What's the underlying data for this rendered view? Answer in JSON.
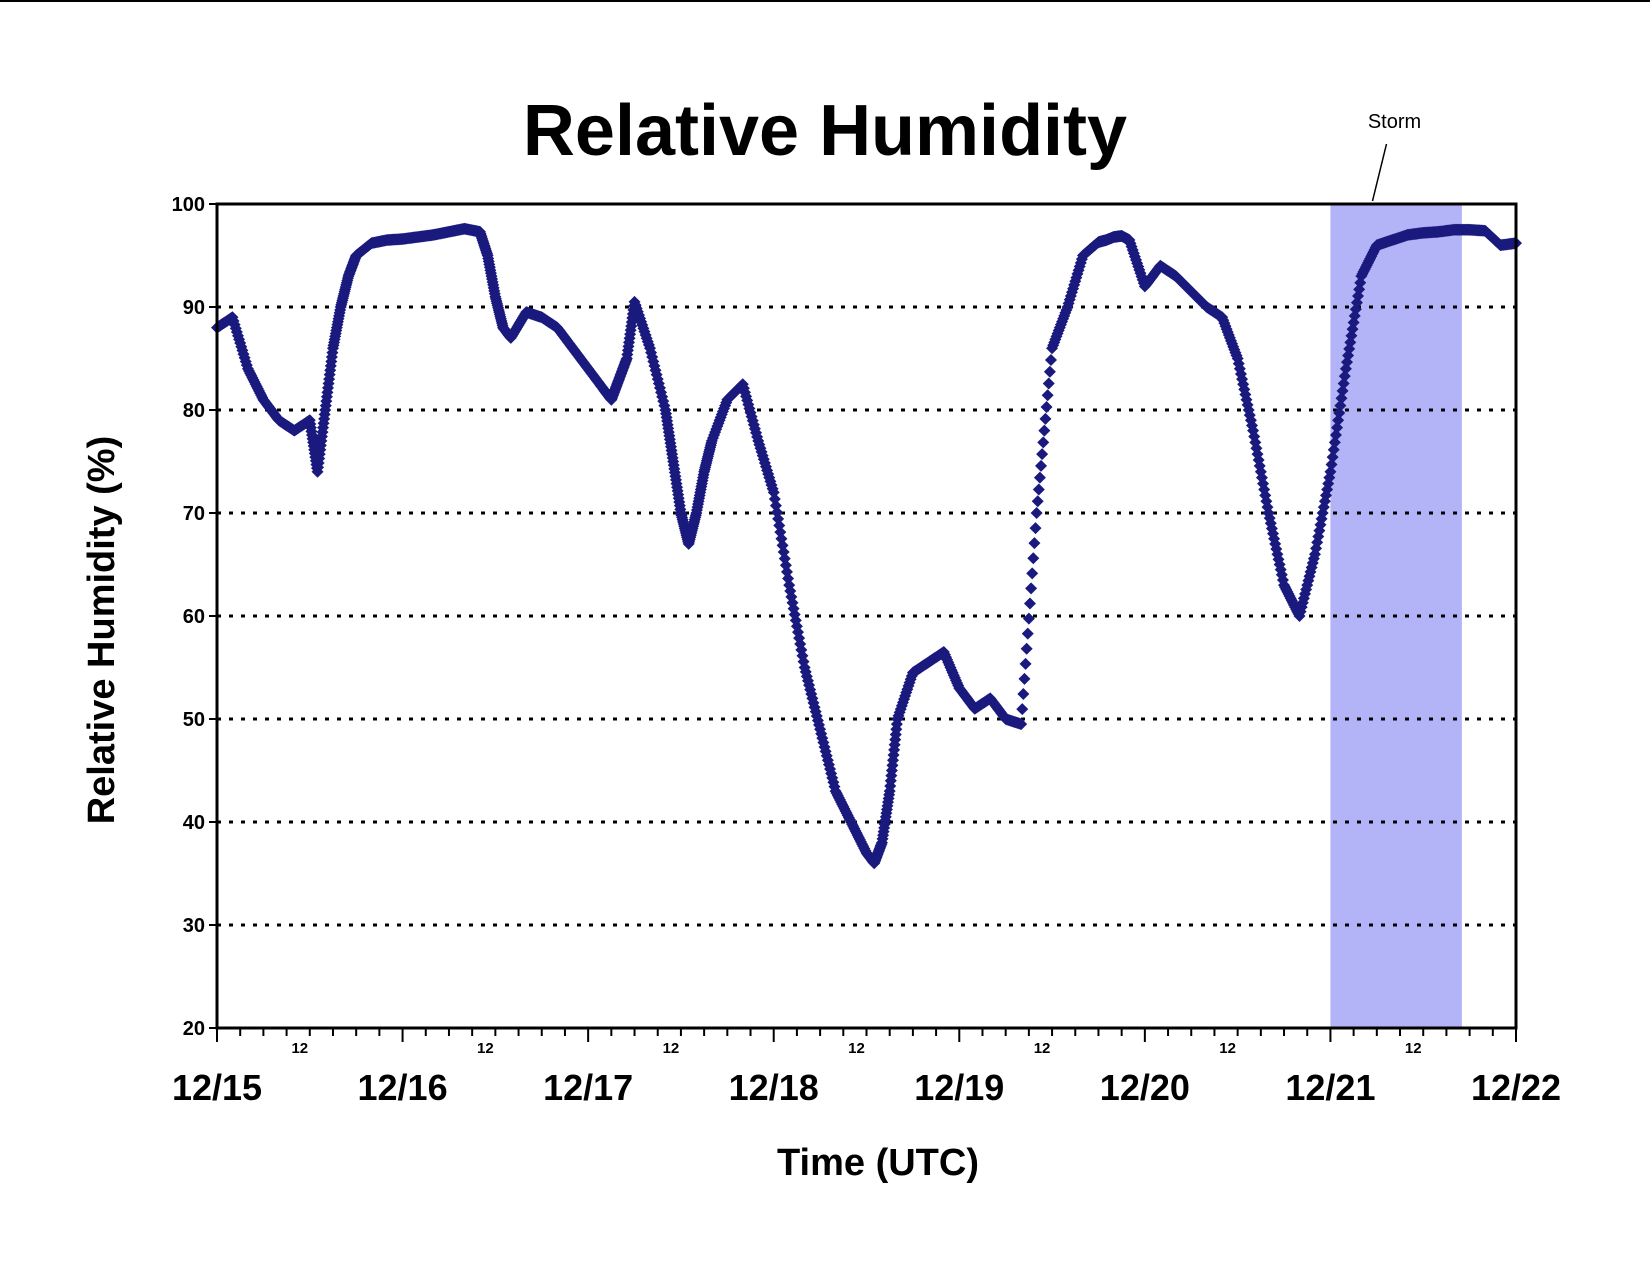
{
  "chart_data": {
    "type": "scatter",
    "title": "Relative Humidity",
    "xlabel": "Time (UTC)",
    "ylabel": "Relative Humidity (%)",
    "ylim": [
      20,
      100
    ],
    "yticks": [
      "20",
      "30",
      "40",
      "50",
      "60",
      "70",
      "80",
      "90",
      "100"
    ],
    "xlim": [
      "12/15 00:00",
      "12/22 00:00"
    ],
    "x_day_labels": [
      "12/15",
      "12/16",
      "12/17",
      "12/18",
      "12/19",
      "12/20",
      "12/21",
      "12/22"
    ],
    "x_hour_label": "12",
    "x_minor_tick_hours": 3,
    "grid": "horizontal dotted",
    "legend": "none",
    "marker_color": "#1a1a7e",
    "annotation": {
      "label": "Storm",
      "start": "12/21 00:00",
      "end": "12/21 17:00",
      "color": "#b3b3f7"
    },
    "series": [
      {
        "x_hours": [
          0,
          2,
          4,
          6,
          8,
          10,
          12,
          13,
          14,
          15,
          16,
          17,
          18,
          20,
          22,
          24,
          26,
          28,
          30,
          32,
          34,
          35,
          36,
          37,
          38,
          40,
          42,
          44,
          46,
          48,
          50,
          51,
          52,
          53,
          54,
          56,
          58,
          59,
          60,
          61,
          62,
          63,
          64,
          66,
          68,
          70,
          72,
          74,
          76,
          78,
          80,
          82,
          84,
          85,
          86,
          87,
          88,
          90,
          92,
          94,
          96,
          98,
          100,
          102,
          104,
          106,
          108,
          110,
          112,
          114,
          115,
          116,
          117,
          118,
          120,
          122,
          124,
          126,
          128,
          130,
          132,
          134,
          136,
          138,
          140,
          142,
          144,
          146,
          148,
          150,
          152,
          154,
          156,
          158,
          160,
          162,
          164,
          166,
          168
        ],
        "values": [
          88,
          89,
          84,
          81,
          79,
          78,
          79,
          74,
          80,
          86,
          90,
          93,
          95,
          96.2,
          96.5,
          96.6,
          96.8,
          97,
          97.3,
          97.6,
          97.3,
          95,
          91,
          88,
          87,
          89.5,
          89,
          88,
          86,
          84,
          82,
          81,
          83,
          85,
          90.5,
          86,
          80,
          75,
          70,
          67,
          70,
          74,
          77,
          81,
          82.5,
          77,
          72,
          63,
          55,
          49,
          43,
          40,
          37,
          36,
          38,
          43,
          50,
          54.5,
          55.5,
          56.5,
          53,
          51,
          52,
          50,
          49.5,
          70,
          86,
          90,
          95,
          96.3,
          96.5,
          96.8,
          96.9,
          96.5,
          92,
          94,
          93,
          91.5,
          90,
          89,
          85,
          78,
          70,
          63,
          60,
          66,
          74,
          84,
          93,
          96,
          96.5,
          97,
          97.2,
          97.3,
          97.5,
          97.5,
          97.4,
          96,
          96.2
        ]
      }
    ]
  }
}
